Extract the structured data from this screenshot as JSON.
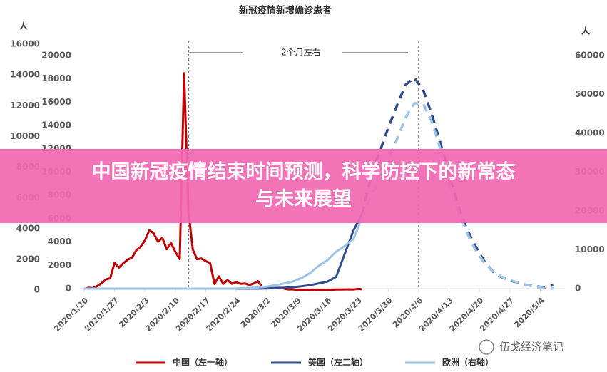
{
  "chart_data": {
    "type": "line",
    "title": "新冠疫情新增确诊患者",
    "ylabel": "人",
    "y3label": "人",
    "annotation": "2个月左右",
    "vlines": [
      "2020/2/13",
      "2020/4/6"
    ],
    "ylim": [
      0,
      16000
    ],
    "yticks": [
      0,
      2000,
      4000,
      6000,
      8000,
      10000,
      12000,
      14000,
      16000
    ],
    "y2lim": [
      0,
      20000
    ],
    "y2ticks": [
      0,
      2000,
      4000,
      6000,
      8000,
      10000,
      12000,
      14000,
      16000,
      18000,
      20000
    ],
    "y3lim": [
      0,
      60000
    ],
    "y3ticks": [
      0,
      10000,
      20000,
      30000,
      40000,
      50000,
      60000
    ],
    "xticks": [
      "2020/1/20",
      "2020/1/27",
      "2020/2/3",
      "2020/2/10",
      "2020/2/17",
      "2020/2/24",
      "2020/3/2",
      "2020/3/9",
      "2020/3/16",
      "2020/3/23",
      "2020/3/30",
      "2020/4/6",
      "2020/4/13",
      "2020/4/20",
      "2020/4/27",
      "2020/5/4"
    ],
    "legend": "bottom",
    "grid": false,
    "series": [
      {
        "name": "中国（左一轴）",
        "color": "#c00000",
        "axis": "y",
        "dashed_from": null,
        "x": [
          "2020/1/20",
          "2020/1/21",
          "2020/1/22",
          "2020/1/23",
          "2020/1/24",
          "2020/1/25",
          "2020/1/26",
          "2020/1/27",
          "2020/1/28",
          "2020/1/29",
          "2020/1/30",
          "2020/1/31",
          "2020/2/1",
          "2020/2/2",
          "2020/2/3",
          "2020/2/4",
          "2020/2/5",
          "2020/2/6",
          "2020/2/7",
          "2020/2/8",
          "2020/2/9",
          "2020/2/10",
          "2020/2/11",
          "2020/2/12",
          "2020/2/13",
          "2020/2/14",
          "2020/2/15",
          "2020/2/16",
          "2020/2/17",
          "2020/2/18",
          "2020/2/19",
          "2020/2/20",
          "2020/2/21",
          "2020/2/22",
          "2020/2/23",
          "2020/2/24",
          "2020/2/25",
          "2020/2/26",
          "2020/2/27",
          "2020/2/28",
          "2020/2/29",
          "2020/3/1",
          "2020/3/2",
          "2020/3/3",
          "2020/3/4",
          "2020/3/5",
          "2020/3/6",
          "2020/3/7",
          "2020/3/8",
          "2020/3/9",
          "2020/3/10",
          "2020/3/11",
          "2020/3/12",
          "2020/3/13",
          "2020/3/14",
          "2020/3/15",
          "2020/3/16",
          "2020/3/17",
          "2020/3/18",
          "2020/3/19",
          "2020/3/20",
          "2020/3/21",
          "2020/3/22",
          "2020/3/23",
          "2020/3/24"
        ],
        "values": [
          77,
          149,
          131,
          259,
          444,
          688,
          769,
          1771,
          1459,
          1737,
          1981,
          2099,
          2590,
          2829,
          3235,
          3887,
          3694,
          3143,
          3399,
          2656,
          3062,
          2478,
          2015,
          14108,
          5090,
          2641,
          2009,
          2048,
          1886,
          1749,
          394,
          889,
          397,
          648,
          409,
          508,
          406,
          433,
          327,
          427,
          573,
          202,
          125,
          119,
          139,
          143,
          99,
          44,
          40,
          19,
          24,
          15,
          8,
          11,
          20,
          16,
          21,
          13,
          34,
          39,
          41,
          46,
          39,
          78,
          47
        ]
      },
      {
        "name": "美国（左二轴）",
        "color": "#2e4d8a",
        "axis": "y2",
        "dashed_from": "2020/3/24",
        "x": [
          "2020/1/20",
          "2020/1/22",
          "2020/1/24",
          "2020/1/26",
          "2020/1/28",
          "2020/1/30",
          "2020/2/1",
          "2020/2/3",
          "2020/2/5",
          "2020/2/7",
          "2020/2/9",
          "2020/2/11",
          "2020/2/13",
          "2020/2/15",
          "2020/2/17",
          "2020/2/19",
          "2020/2/21",
          "2020/2/23",
          "2020/2/25",
          "2020/2/27",
          "2020/2/29",
          "2020/3/2",
          "2020/3/4",
          "2020/3/6",
          "2020/3/8",
          "2020/3/10",
          "2020/3/12",
          "2020/3/14",
          "2020/3/16",
          "2020/3/18",
          "2020/3/20",
          "2020/3/22",
          "2020/3/24",
          "2020/3/26",
          "2020/3/28",
          "2020/3/30",
          "2020/4/1",
          "2020/4/3",
          "2020/4/5",
          "2020/4/7",
          "2020/4/9",
          "2020/4/11",
          "2020/4/13",
          "2020/4/15",
          "2020/4/17",
          "2020/4/19",
          "2020/4/21",
          "2020/4/23",
          "2020/4/25",
          "2020/4/27",
          "2020/4/29",
          "2020/5/1",
          "2020/5/3",
          "2020/5/5",
          "2020/5/7"
        ],
        "values": [
          0,
          0,
          0,
          0,
          0,
          0,
          0,
          0,
          0,
          0,
          0,
          0,
          0,
          0,
          0,
          0,
          0,
          0,
          0,
          0,
          0,
          20,
          40,
          80,
          120,
          200,
          300,
          450,
          600,
          1000,
          3000,
          5000,
          6400,
          9500,
          11700,
          13800,
          15700,
          17500,
          18100,
          17100,
          15000,
          12500,
          9800,
          7300,
          5200,
          3700,
          2400,
          1500,
          1000,
          700,
          500,
          300,
          200,
          100,
          300
        ]
      },
      {
        "name": "欧洲（右轴）",
        "color": "#9dc3e6",
        "axis": "y3",
        "dashed_from": "2020/3/24",
        "x": [
          "2020/1/20",
          "2020/1/22",
          "2020/1/24",
          "2020/1/26",
          "2020/1/28",
          "2020/1/30",
          "2020/2/1",
          "2020/2/3",
          "2020/2/5",
          "2020/2/7",
          "2020/2/9",
          "2020/2/11",
          "2020/2/13",
          "2020/2/15",
          "2020/2/17",
          "2020/2/19",
          "2020/2/21",
          "2020/2/23",
          "2020/2/25",
          "2020/2/27",
          "2020/2/29",
          "2020/3/2",
          "2020/3/4",
          "2020/3/6",
          "2020/3/8",
          "2020/3/10",
          "2020/3/12",
          "2020/3/14",
          "2020/3/16",
          "2020/3/18",
          "2020/3/20",
          "2020/3/22",
          "2020/3/24",
          "2020/3/26",
          "2020/3/28",
          "2020/3/30",
          "2020/4/1",
          "2020/4/3",
          "2020/4/5",
          "2020/4/7",
          "2020/4/9",
          "2020/4/11",
          "2020/4/13",
          "2020/4/15",
          "2020/4/17",
          "2020/4/19",
          "2020/4/21",
          "2020/4/23",
          "2020/4/25",
          "2020/4/27",
          "2020/4/29",
          "2020/5/1",
          "2020/5/3",
          "2020/5/5",
          "2020/5/7"
        ],
        "values": [
          0,
          0,
          0,
          0,
          0,
          0,
          0,
          0,
          0,
          0,
          0,
          0,
          0,
          0,
          0,
          0,
          0,
          0,
          100,
          200,
          300,
          500,
          900,
          1300,
          1800,
          2700,
          4000,
          5900,
          7300,
          9500,
          11000,
          12800,
          18300,
          23800,
          28400,
          33000,
          38500,
          44000,
          47700,
          47700,
          43000,
          36000,
          26600,
          20200,
          14700,
          10100,
          6800,
          4600,
          3100,
          2200,
          1500,
          900,
          400,
          100,
          0
        ]
      }
    ]
  },
  "banner": {
    "line1": "中国新冠疫情结束时间预测，科学防控下的新常态",
    "line2": "与未来展望"
  },
  "watermark": "伍戈经济笔记"
}
